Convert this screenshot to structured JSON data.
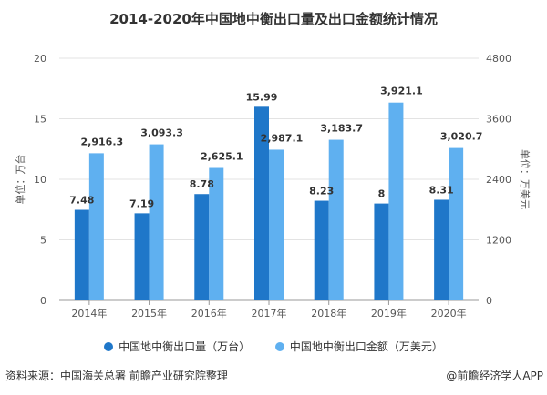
{
  "chart_data": {
    "type": "bar",
    "title": "2014-2020年中国地中衡出口量及出口金额统计情况",
    "categories": [
      "2014年",
      "2015年",
      "2016年",
      "2017年",
      "2018年",
      "2019年",
      "2020年"
    ],
    "series": [
      {
        "name": "中国地中衡出口量（万台）",
        "axis": "left",
        "color": "#1f77c9",
        "values": [
          7.48,
          7.19,
          8.78,
          15.99,
          8.23,
          8,
          8.31
        ],
        "labels": [
          "7.48",
          "7.19",
          "8.78",
          "15.99",
          "8.23",
          "8",
          "8.31"
        ]
      },
      {
        "name": "中国地中衡出口金额（万美元）",
        "axis": "right",
        "color": "#5fb0f0",
        "values": [
          2916.3,
          3093.3,
          2625.1,
          2987.1,
          3183.7,
          3921.1,
          3020.7
        ],
        "labels": [
          "2,916.3",
          "3,093.3",
          "2,625.1",
          "2,987.1",
          "3,183.7",
          "3,921.1",
          "3,020.7"
        ]
      }
    ],
    "ylabel": "单位：万台",
    "ylabel_right": "单位：万美元",
    "ylim": [
      0,
      20
    ],
    "ylim_right": [
      0,
      4800
    ],
    "yticks": [
      "0",
      "5",
      "10",
      "15",
      "20"
    ],
    "yticks_right": [
      "0",
      "1200",
      "2400",
      "3600",
      "4800"
    ],
    "legend": "bottom",
    "grid": true
  },
  "footer": {
    "source": "资料来源：中国海关总署 前瞻产业研究院整理",
    "brand": "@前瞻经济学人APP"
  }
}
